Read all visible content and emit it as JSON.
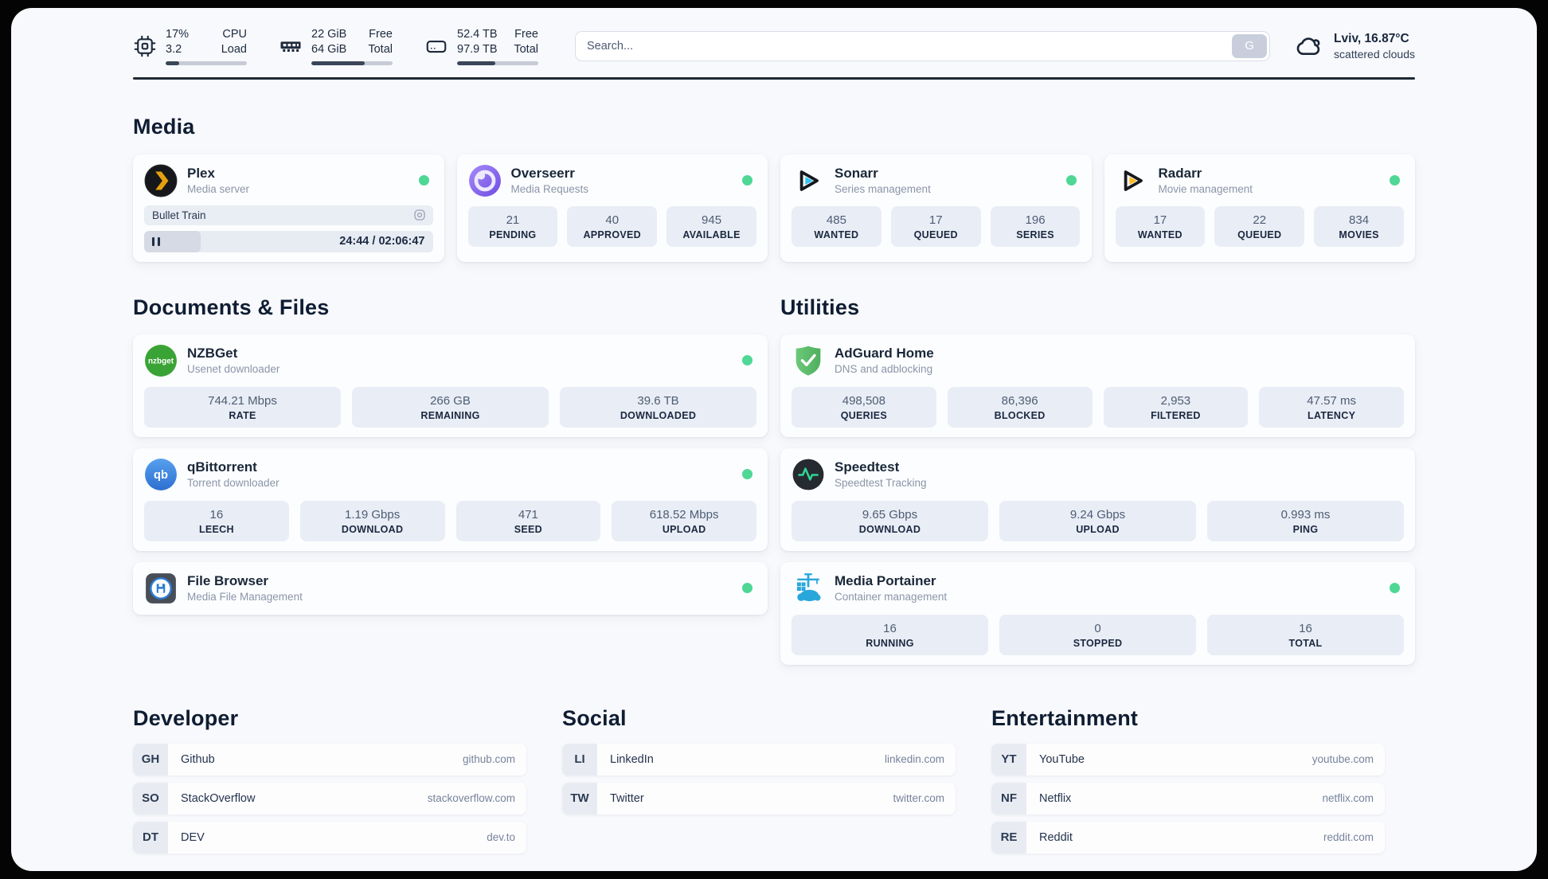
{
  "colors": {
    "status_online": "#4fd796",
    "page_background": "#f8f9fc",
    "frame_background": "#040404",
    "stat_box_background": "#e9edf5",
    "plex_gold": "#e5a00d",
    "sonarr_cyan": "#33c3f0",
    "radarr_yellow": "#ffb923",
    "overseerr_purple": "#7b5ce5",
    "nzbget_green": "#3aa335",
    "qbittorrent_blue": "#3a7edb",
    "adguard_green": "#5fbe6a",
    "speedtest_green": "#2fd694",
    "portainer_blue": "#28a7db"
  },
  "header": {
    "system": [
      {
        "icon": "cpu-icon",
        "values": [
          "17%",
          "3.2"
        ],
        "labels": [
          "CPU",
          "Load"
        ],
        "progress": 17
      },
      {
        "icon": "ram-icon",
        "values": [
          "22 GiB",
          "64 GiB"
        ],
        "labels": [
          "Free",
          "Total"
        ],
        "progress": 66
      },
      {
        "icon": "disk-icon",
        "values": [
          "52.4 TB",
          "97.9 TB"
        ],
        "labels": [
          "Free",
          "Total"
        ],
        "progress": 47
      }
    ],
    "search": {
      "placeholder": "Search...",
      "button_label": "G"
    },
    "weather": {
      "icon": "cloud-icon",
      "location_temp": "Lviv, 16.87°C",
      "condition": "scattered clouds"
    }
  },
  "sections": {
    "media": "Media",
    "documents": "Documents & Files",
    "utilities": "Utilities",
    "developer": "Developer",
    "social": "Social",
    "entertainment": "Entertainment"
  },
  "apps": {
    "plex": {
      "name": "Plex",
      "desc": "Media server",
      "status": "online",
      "now_playing": "Bullet Train",
      "time": "24:44 / 02:06:47",
      "progress_percent": 19.5
    },
    "overseerr": {
      "name": "Overseerr",
      "desc": "Media Requests",
      "status": "online",
      "stats": [
        {
          "value": "21",
          "label": "PENDING"
        },
        {
          "value": "40",
          "label": "APPROVED"
        },
        {
          "value": "945",
          "label": "AVAILABLE"
        }
      ]
    },
    "sonarr": {
      "name": "Sonarr",
      "desc": "Series management",
      "status": "online",
      "stats": [
        {
          "value": "485",
          "label": "WANTED"
        },
        {
          "value": "17",
          "label": "QUEUED"
        },
        {
          "value": "196",
          "label": "SERIES"
        }
      ]
    },
    "radarr": {
      "name": "Radarr",
      "desc": "Movie management",
      "status": "online",
      "stats": [
        {
          "value": "17",
          "label": "WANTED"
        },
        {
          "value": "22",
          "label": "QUEUED"
        },
        {
          "value": "834",
          "label": "MOVIES"
        }
      ]
    },
    "nzbget": {
      "name": "NZBGet",
      "desc": "Usenet downloader",
      "icon_text": "nzbget",
      "status": "online",
      "stats": [
        {
          "value": "744.21 Mbps",
          "label": "RATE"
        },
        {
          "value": "266 GB",
          "label": "REMAINING"
        },
        {
          "value": "39.6 TB",
          "label": "DOWNLOADED"
        }
      ]
    },
    "qbittorrent": {
      "name": "qBittorrent",
      "desc": "Torrent downloader",
      "icon_text": "qb",
      "status": "online",
      "stats": [
        {
          "value": "16",
          "label": "LEECH"
        },
        {
          "value": "1.19 Gbps",
          "label": "DOWNLOAD"
        },
        {
          "value": "471",
          "label": "SEED"
        },
        {
          "value": "618.52 Mbps",
          "label": "UPLOAD"
        }
      ]
    },
    "filebrowser": {
      "name": "File Browser",
      "desc": "Media File Management",
      "status": "online"
    },
    "adguard": {
      "name": "AdGuard Home",
      "desc": "DNS and adblocking",
      "stats": [
        {
          "value": "498,508",
          "label": "QUERIES"
        },
        {
          "value": "86,396",
          "label": "BLOCKED"
        },
        {
          "value": "2,953",
          "label": "FILTERED"
        },
        {
          "value": "47.57 ms",
          "label": "LATENCY"
        }
      ]
    },
    "speedtest": {
      "name": "Speedtest",
      "desc": "Speedtest Tracking",
      "stats": [
        {
          "value": "9.65 Gbps",
          "label": "DOWNLOAD"
        },
        {
          "value": "9.24 Gbps",
          "label": "UPLOAD"
        },
        {
          "value": "0.993 ms",
          "label": "PING"
        }
      ]
    },
    "portainer": {
      "name": "Media Portainer",
      "desc": "Container management",
      "status": "online",
      "stats": [
        {
          "value": "16",
          "label": "RUNNING"
        },
        {
          "value": "0",
          "label": "STOPPED"
        },
        {
          "value": "16",
          "label": "TOTAL"
        }
      ]
    }
  },
  "bookmarks": {
    "developer": [
      {
        "abbr": "GH",
        "name": "Github",
        "url": "github.com"
      },
      {
        "abbr": "SO",
        "name": "StackOverflow",
        "url": "stackoverflow.com"
      },
      {
        "abbr": "DT",
        "name": "DEV",
        "url": "dev.to"
      }
    ],
    "social": [
      {
        "abbr": "LI",
        "name": "LinkedIn",
        "url": "linkedin.com"
      },
      {
        "abbr": "TW",
        "name": "Twitter",
        "url": "twitter.com"
      }
    ],
    "entertainment": [
      {
        "abbr": "YT",
        "name": "YouTube",
        "url": "youtube.com"
      },
      {
        "abbr": "NF",
        "name": "Netflix",
        "url": "netflix.com"
      },
      {
        "abbr": "RE",
        "name": "Reddit",
        "url": "reddit.com"
      }
    ]
  }
}
